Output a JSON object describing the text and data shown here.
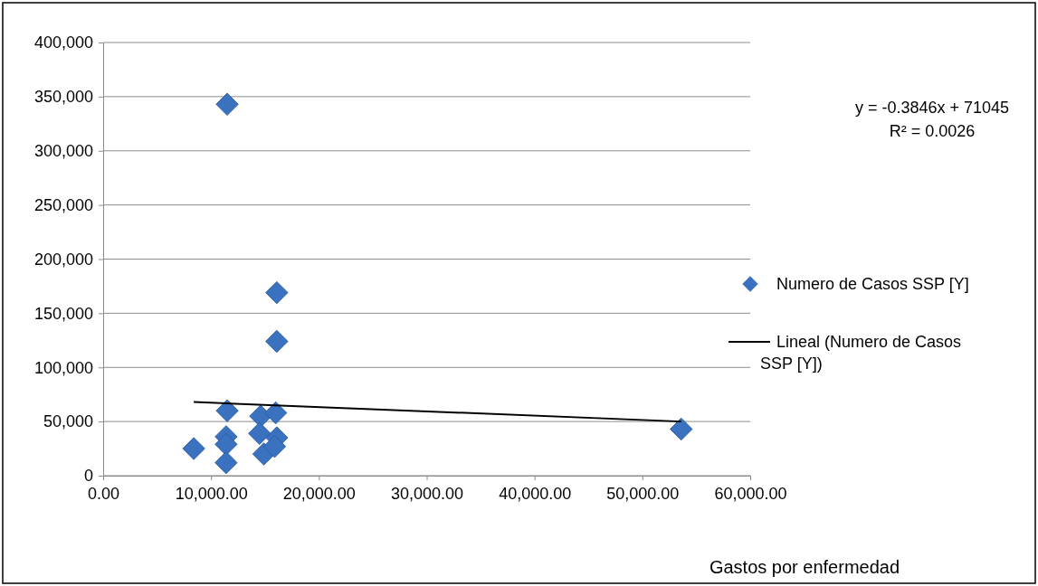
{
  "chart_data": {
    "type": "scatter",
    "xlabel": "Gastos por enfermedad",
    "annotations": [
      "y = -0.3846x + 71045",
      "R² = 0.0026"
    ],
    "series": [
      {
        "name": "Numero de Casos SSP [Y]",
        "color": "#3a72c0",
        "marker": "diamond",
        "x": [
          8400,
          11500,
          11400,
          11400,
          11400,
          14600,
          14500,
          14900,
          16000,
          16100,
          15900,
          11500,
          16100,
          16100,
          53600
        ],
        "values": [
          25000,
          60000,
          36000,
          29000,
          12000,
          55000,
          39000,
          20000,
          58000,
          35000,
          27000,
          343000,
          169000,
          124000,
          43000
        ]
      },
      {
        "name": "Lineal (Numero de Casos SSP [Y])",
        "type": "line",
        "color": "#000000",
        "marker": "none",
        "line_style": "solid",
        "x": [
          8400,
          53600
        ],
        "values": [
          68000,
          50000
        ]
      }
    ],
    "xlim": [
      0,
      60000
    ],
    "xticks": [
      {
        "value": 0,
        "label": "0.00"
      },
      {
        "value": 10000,
        "label": "10,000.00"
      },
      {
        "value": 20000,
        "label": "20,000.00"
      },
      {
        "value": 30000,
        "label": "30,000.00"
      },
      {
        "value": 40000,
        "label": "40,000.00"
      },
      {
        "value": 50000,
        "label": "50,000.00"
      },
      {
        "value": 60000,
        "label": "60,000.00"
      }
    ],
    "ylim": [
      0,
      400000
    ],
    "yticks": [
      0,
      {
        "value": 50000,
        "label": "50,000"
      },
      {
        "value": 100000,
        "label": "100,000"
      },
      {
        "value": 150000,
        "label": "150,000"
      },
      {
        "value": 200000,
        "label": "200,000"
      },
      {
        "value": 250000,
        "label": "250,000"
      },
      {
        "value": 300000,
        "label": "300,000"
      },
      {
        "value": 350000,
        "label": "350,000"
      },
      {
        "value": 400000,
        "label": "400,000"
      }
    ],
    "grid": "y",
    "legend": "right"
  }
}
